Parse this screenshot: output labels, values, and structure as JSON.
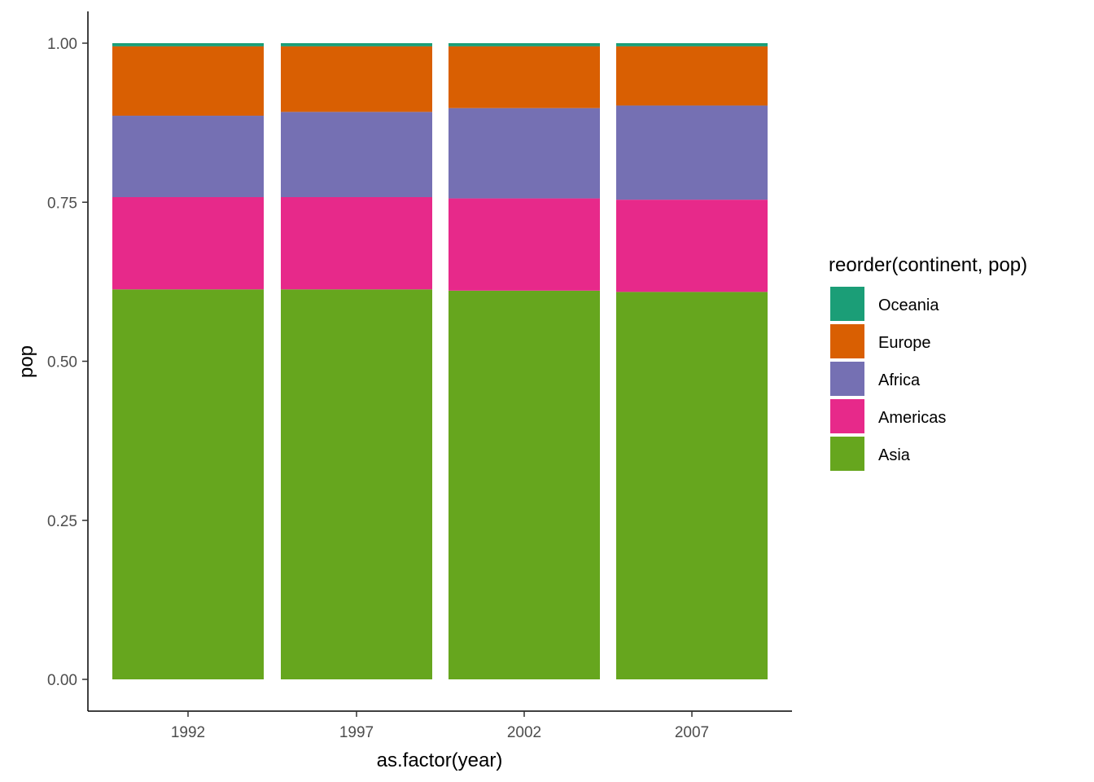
{
  "chart_data": {
    "type": "bar",
    "stacked": true,
    "position": "fill",
    "categories": [
      "1992",
      "1997",
      "2002",
      "2007"
    ],
    "xlabel": "as.factor(year)",
    "ylabel": "pop",
    "ylim": [
      0,
      1
    ],
    "yticks": [
      "0.00",
      "0.25",
      "0.50",
      "0.75",
      "1.00"
    ],
    "grid": false,
    "legend": {
      "title": "reorder(continent, pop)",
      "position": "right"
    },
    "series": [
      {
        "name": "Asia",
        "color": "#66A61E",
        "values": [
          0.613,
          0.613,
          0.611,
          0.609
        ]
      },
      {
        "name": "Americas",
        "color": "#E7298A",
        "values": [
          0.145,
          0.145,
          0.145,
          0.145
        ]
      },
      {
        "name": "Africa",
        "color": "#7570B3",
        "values": [
          0.128,
          0.134,
          0.142,
          0.148
        ]
      },
      {
        "name": "Europe",
        "color": "#D95F02",
        "values": [
          0.109,
          0.103,
          0.097,
          0.093
        ]
      },
      {
        "name": "Oceania",
        "color": "#1B9E77",
        "values": [
          0.005,
          0.005,
          0.005,
          0.005
        ]
      }
    ]
  }
}
